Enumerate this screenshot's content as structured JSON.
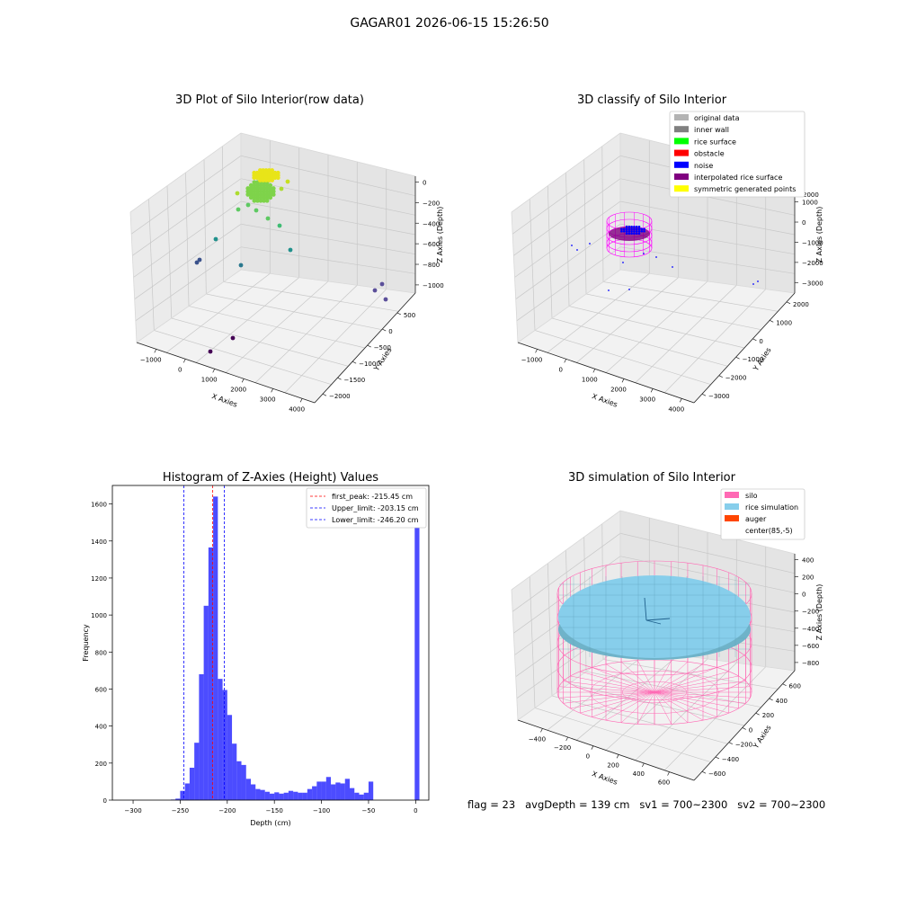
{
  "suptitle": "GAGAR01 2026-06-15 15:26:50",
  "footer": "flag = 23   avgDepth = 139 cm   sv1 = 700~2300   sv2 = 700~2300",
  "chart_data": [
    {
      "type": "scatter",
      "title": "3D Plot of Silo Interior(row data)",
      "xlabel": "X Axies",
      "ylabel": "Y Axies",
      "zlabel": "Z Axies (Depth)",
      "x_ticks": [
        "−1000",
        "0",
        "1000",
        "2000",
        "3000",
        "4000"
      ],
      "y_ticks": [
        "500",
        "0",
        "−500",
        "−1000",
        "−1500",
        "−2000"
      ],
      "z_ticks": [
        "0",
        "−200",
        "−400",
        "−600",
        "−800",
        "−1000"
      ],
      "xlim": [
        -1500,
        4500
      ],
      "ylim": [
        -2200,
        700
      ],
      "zlim": [
        -1100,
        50
      ],
      "colormap": "viridis"
    },
    {
      "type": "scatter",
      "title": "3D classify of Silo Interior",
      "xlabel": "X Axies",
      "ylabel": "Y Axies",
      "zlabel": "Z Axies (Depth)",
      "x_ticks": [
        "−1000",
        "0",
        "1000",
        "2000",
        "3000",
        "4000"
      ],
      "y_ticks": [
        "2000",
        "1000",
        "0",
        "−1000",
        "−2000",
        "−3000"
      ],
      "z_ticks": [
        "1000",
        "0",
        "−1000",
        "−2000",
        "−3000"
      ],
      "z_tick_top": "2000",
      "legend": [
        {
          "label": "original data",
          "color": "#b3b3b3"
        },
        {
          "label": "inner wall",
          "color": "#808080"
        },
        {
          "label": "rice surface",
          "color": "#00ff00"
        },
        {
          "label": "obstacle",
          "color": "#ff0000"
        },
        {
          "label": "noise",
          "color": "#0000ff"
        },
        {
          "label": "interpolated rice surface",
          "color": "#800080"
        },
        {
          "label": "symmetric generated points",
          "color": "#ffff00"
        }
      ]
    },
    {
      "type": "bar",
      "title": "Histogram of Z-Axies (Height) Values",
      "xlabel": "Depth (cm)",
      "ylabel": "Frequency",
      "xlim": [
        -322,
        14
      ],
      "ylim": [
        0,
        1700
      ],
      "x_ticks": [
        -300,
        -250,
        -200,
        -150,
        -100,
        -50,
        0
      ],
      "y_ticks": [
        0,
        200,
        400,
        600,
        800,
        1000,
        1200,
        1400,
        1600
      ],
      "bar_color": "#0000ff",
      "bins": [
        {
          "x0": -260.0,
          "x1": -255.0,
          "count": 3
        },
        {
          "x0": -255.0,
          "x1": -250.0,
          "count": 8
        },
        {
          "x0": -250.0,
          "x1": -245.0,
          "count": 50
        },
        {
          "x0": -245.0,
          "x1": -240.0,
          "count": 90
        },
        {
          "x0": -240.0,
          "x1": -235.0,
          "count": 175
        },
        {
          "x0": -235.0,
          "x1": -230.0,
          "count": 310
        },
        {
          "x0": -230.0,
          "x1": -225.0,
          "count": 680
        },
        {
          "x0": -225.0,
          "x1": -220.0,
          "count": 1050
        },
        {
          "x0": -220.0,
          "x1": -215.0,
          "count": 1365
        },
        {
          "x0": -215.0,
          "x1": -210.0,
          "count": 1640
        },
        {
          "x0": -210.0,
          "x1": -205.0,
          "count": 655
        },
        {
          "x0": -205.0,
          "x1": -200.0,
          "count": 595
        },
        {
          "x0": -200.0,
          "x1": -195.0,
          "count": 460
        },
        {
          "x0": -195.0,
          "x1": -190.0,
          "count": 305
        },
        {
          "x0": -190.0,
          "x1": -185.0,
          "count": 210
        },
        {
          "x0": -185.0,
          "x1": -180.0,
          "count": 190
        },
        {
          "x0": -180.0,
          "x1": -175.0,
          "count": 115
        },
        {
          "x0": -175.0,
          "x1": -170.0,
          "count": 85
        },
        {
          "x0": -170.0,
          "x1": -165.0,
          "count": 60
        },
        {
          "x0": -165.0,
          "x1": -160.0,
          "count": 55
        },
        {
          "x0": -160.0,
          "x1": -155.0,
          "count": 45
        },
        {
          "x0": -155.0,
          "x1": -150.0,
          "count": 35
        },
        {
          "x0": -150.0,
          "x1": -145.0,
          "count": 42
        },
        {
          "x0": -145.0,
          "x1": -140.0,
          "count": 35
        },
        {
          "x0": -140.0,
          "x1": -135.0,
          "count": 40
        },
        {
          "x0": -135.0,
          "x1": -130.0,
          "count": 50
        },
        {
          "x0": -130.0,
          "x1": -125.0,
          "count": 45
        },
        {
          "x0": -125.0,
          "x1": -120.0,
          "count": 40
        },
        {
          "x0": -120.0,
          "x1": -115.0,
          "count": 40
        },
        {
          "x0": -115.0,
          "x1": -110.0,
          "count": 60
        },
        {
          "x0": -110.0,
          "x1": -105.0,
          "count": 75
        },
        {
          "x0": -105.0,
          "x1": -100.0,
          "count": 100
        },
        {
          "x0": -100.0,
          "x1": -95.0,
          "count": 100
        },
        {
          "x0": -95.0,
          "x1": -90.0,
          "count": 125
        },
        {
          "x0": -90.0,
          "x1": -85.0,
          "count": 85
        },
        {
          "x0": -85.0,
          "x1": -80.0,
          "count": 95
        },
        {
          "x0": -80.0,
          "x1": -75.0,
          "count": 90
        },
        {
          "x0": -75.0,
          "x1": -70.0,
          "count": 115
        },
        {
          "x0": -70.0,
          "x1": -65.0,
          "count": 65
        },
        {
          "x0": -65.0,
          "x1": -60.0,
          "count": 40
        },
        {
          "x0": -60.0,
          "x1": -55.0,
          "count": 30
        },
        {
          "x0": -55.0,
          "x1": -50.0,
          "count": 40
        },
        {
          "x0": -50.0,
          "x1": -45.0,
          "count": 100
        },
        {
          "x0": -45.0,
          "x1": -40.0,
          "count": 1600
        }
      ],
      "bin_shift": 44.0,
      "lines": [
        {
          "label": "first_peak: -215.45 cm",
          "x": -215.45,
          "color": "#ff0000"
        },
        {
          "label": "Upper_limit: -203.15 cm",
          "x": -203.15,
          "color": "#0000ff"
        },
        {
          "label": "Lower_limit: -246.20 cm",
          "x": -246.2,
          "color": "#0000ff"
        }
      ]
    },
    {
      "type": "scatter",
      "title": "3D simulation of Silo Interior",
      "xlabel": "X Axies",
      "ylabel": "Y Axies",
      "zlabel": "Z Axies (Depth)",
      "x_ticks": [
        "−400",
        "−200",
        "0",
        "200",
        "400",
        "600"
      ],
      "y_ticks": [
        "600",
        "400",
        "200",
        "0",
        "−200",
        "−400",
        "−600"
      ],
      "z_ticks": [
        "400",
        "200",
        "0",
        "−200",
        "−400",
        "−600",
        "−800"
      ],
      "legend": [
        {
          "label": "silo",
          "color": "#ff69b4"
        },
        {
          "label": "rice simulation",
          "color": "#87ceeb"
        },
        {
          "label": "auger",
          "color": "#ff4500"
        },
        {
          "label": "center(85,-5)",
          "color": ""
        }
      ]
    }
  ]
}
